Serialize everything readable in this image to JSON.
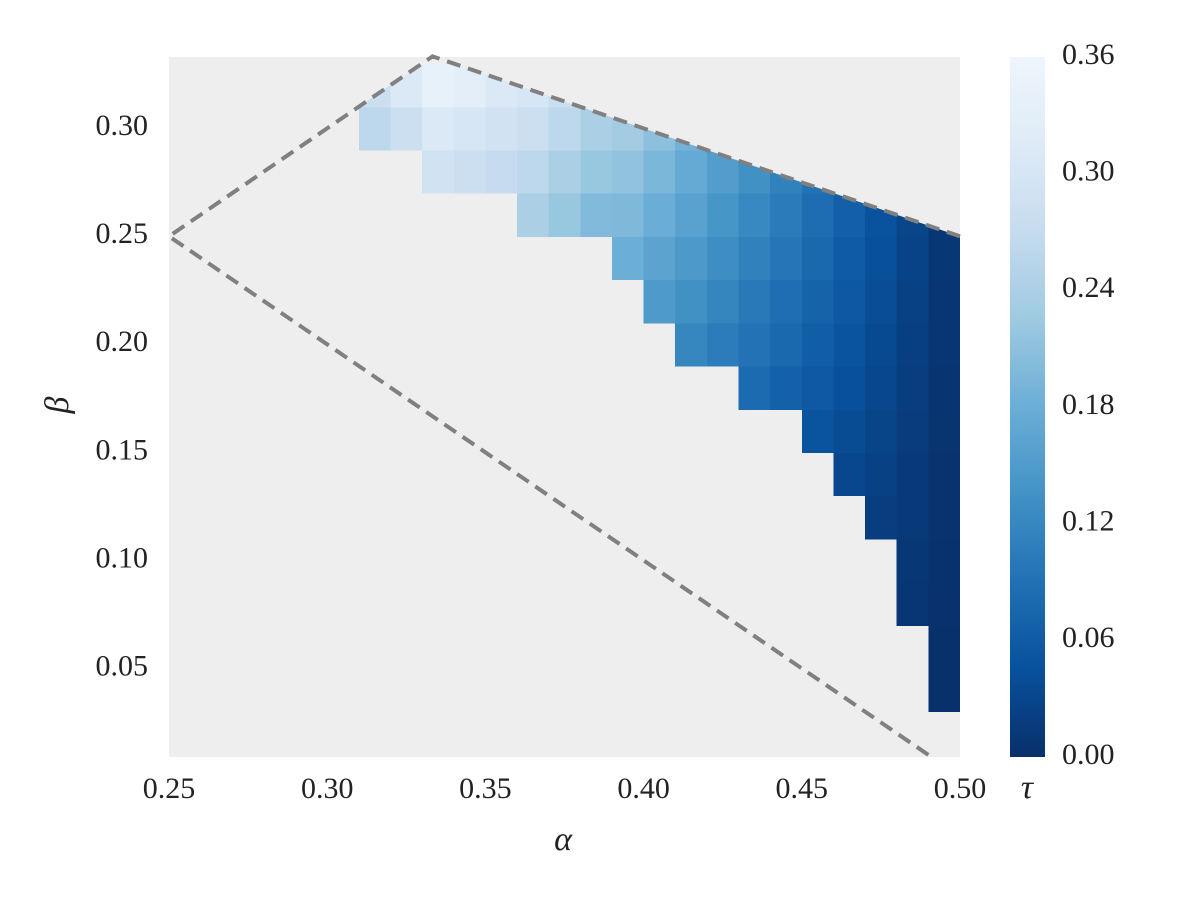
{
  "chart_data": {
    "type": "heatmap",
    "xlabel": "α",
    "ylabel": "β",
    "colorbar_label": "τ",
    "xlim": [
      0.25,
      0.5
    ],
    "ylim": [
      0.009,
      0.333
    ],
    "xticks": [
      0.25,
      {
        "value": 0.3,
        "label": "0.30"
      },
      0.35,
      {
        "value": 0.4,
        "label": "0.40"
      },
      0.45,
      {
        "value": 0.5,
        "label": "0.50"
      }
    ],
    "yticks": [
      0.05,
      {
        "value": 0.1,
        "label": "0.10"
      },
      0.15,
      {
        "value": 0.2,
        "label": "0.20"
      },
      0.25,
      {
        "value": 0.3,
        "label": "0.30"
      }
    ],
    "clim": [
      0,
      0.36
    ],
    "colorbar_ticks": [
      {
        "value": 0,
        "label": "0.00"
      },
      0.06,
      0.12,
      0.18,
      0.24,
      {
        "value": 0.3,
        "label": "0.30"
      },
      0.36
    ],
    "colormap": [
      "#08306b",
      "#08519c",
      "#2171b5",
      "#4292c6",
      "#6baed6",
      "#9ecae1",
      "#c6dbef",
      "#deebf7",
      "#eef5fc"
    ],
    "background": "#eeeeee",
    "x_edges": [
      0.31,
      0.32,
      0.33,
      0.34,
      0.35,
      0.36,
      0.37,
      0.38,
      0.39,
      0.4,
      0.41,
      0.42,
      0.43,
      0.44,
      0.45,
      0.46,
      0.47,
      0.48,
      0.49,
      0.5
    ],
    "y_edges": [
      0.01,
      0.03,
      0.05,
      0.07,
      0.09,
      0.11,
      0.13,
      0.15,
      0.17,
      0.19,
      0.21,
      0.23,
      0.25,
      0.27,
      0.29,
      0.31,
      0.33
    ],
    "z": [
      [
        null,
        null,
        null,
        null,
        null,
        null,
        null,
        null,
        null,
        null,
        null,
        null,
        null,
        null,
        null,
        null,
        null,
        null,
        null
      ],
      [
        null,
        null,
        null,
        null,
        null,
        null,
        null,
        null,
        null,
        null,
        null,
        null,
        null,
        null,
        null,
        null,
        null,
        null,
        0.001
      ],
      [
        null,
        null,
        null,
        null,
        null,
        null,
        null,
        null,
        null,
        null,
        null,
        null,
        null,
        null,
        null,
        null,
        null,
        null,
        0.001
      ],
      [
        null,
        null,
        null,
        null,
        null,
        null,
        null,
        null,
        null,
        null,
        null,
        null,
        null,
        null,
        null,
        null,
        null,
        0.007,
        0.002
      ],
      [
        null,
        null,
        null,
        null,
        null,
        null,
        null,
        null,
        null,
        null,
        null,
        null,
        null,
        null,
        null,
        null,
        null,
        0.009,
        0.003
      ],
      [
        null,
        null,
        null,
        null,
        null,
        null,
        null,
        null,
        null,
        null,
        null,
        null,
        null,
        null,
        null,
        null,
        0.019,
        0.012,
        0.004
      ],
      [
        null,
        null,
        null,
        null,
        null,
        null,
        null,
        null,
        null,
        null,
        null,
        null,
        null,
        null,
        null,
        0.032,
        0.023,
        0.014,
        0.004
      ],
      [
        null,
        null,
        null,
        null,
        null,
        null,
        null,
        null,
        null,
        null,
        null,
        null,
        null,
        null,
        0.049,
        0.038,
        0.027,
        0.016,
        0.005
      ],
      [
        null,
        null,
        null,
        null,
        null,
        null,
        null,
        null,
        null,
        null,
        null,
        null,
        0.081,
        0.068,
        0.056,
        0.044,
        0.031,
        0.019,
        0.006
      ],
      [
        null,
        null,
        null,
        null,
        null,
        null,
        null,
        null,
        null,
        null,
        0.119,
        0.105,
        0.091,
        0.077,
        0.063,
        0.049,
        0.035,
        0.021,
        0.007
      ],
      [
        null,
        null,
        null,
        null,
        null,
        null,
        null,
        null,
        null,
        0.148,
        0.133,
        0.117,
        0.101,
        0.086,
        0.07,
        0.055,
        0.039,
        0.024,
        0.008
      ],
      [
        null,
        null,
        null,
        null,
        null,
        null,
        null,
        null,
        0.181,
        0.163,
        0.146,
        0.129,
        0.112,
        0.095,
        0.077,
        0.06,
        0.043,
        0.026,
        0.009
      ],
      [
        null,
        null,
        null,
        null,
        null,
        0.24,
        0.22,
        0.2,
        0.197,
        0.179,
        0.16,
        0.141,
        0.122,
        0.103,
        0.085,
        0.066,
        0.047,
        0.028,
        0.009
      ],
      [
        null,
        null,
        0.29,
        0.28,
        0.27,
        0.26,
        0.24,
        0.22,
        0.214,
        0.194,
        0.173,
        0.153,
        0.133,
        0.112,
        0.092,
        null,
        null,
        null,
        null
      ],
      [
        0.26,
        0.28,
        0.31,
        0.3,
        0.29,
        0.28,
        0.26,
        0.24,
        0.231,
        0.209,
        0.187,
        null,
        null,
        null,
        null,
        null,
        null,
        null,
        null
      ],
      [
        0.28,
        0.31,
        0.34,
        0.33,
        0.31,
        0.3,
        0.28,
        null,
        null,
        null,
        null,
        null,
        null,
        null,
        null,
        null,
        null,
        null,
        null
      ]
    ],
    "boundary": {
      "x": [
        0.49,
        0.25,
        0.3333,
        0.5
      ],
      "y": [
        0.01,
        0.25,
        0.3333,
        0.25
      ],
      "color": "#808080",
      "style": "dashed"
    }
  }
}
